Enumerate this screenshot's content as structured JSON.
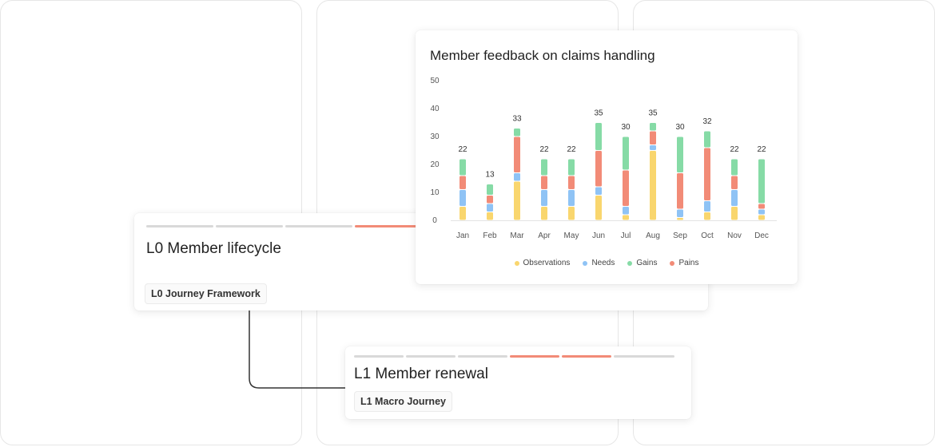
{
  "l0_card": {
    "title": "L0 Member lifecycle",
    "tag": "L0 Journey Framework"
  },
  "l1_card": {
    "title": "L1 Member renewal",
    "tag": "L1 Macro Journey"
  },
  "colors": {
    "progress_active": "#f28b77",
    "progress_inactive": "#d9d9d9",
    "observations": "#f9d66e",
    "needs": "#8fc3f5",
    "gains": "#86dba6",
    "pains": "#f28b77"
  },
  "chart_data": {
    "type": "bar",
    "stacked": true,
    "title": "Member feedback on claims handling",
    "categories": [
      "Jan",
      "Feb",
      "Mar",
      "Apr",
      "May",
      "Jun",
      "Jul",
      "Aug",
      "Sep",
      "Oct",
      "Nov",
      "Dec"
    ],
    "totals": [
      22,
      13,
      33,
      22,
      22,
      35,
      30,
      35,
      30,
      32,
      22,
      22
    ],
    "series": [
      {
        "name": "Observations",
        "values": [
          5,
          3,
          14,
          5,
          5,
          9,
          2,
          25,
          1,
          3,
          5,
          2
        ]
      },
      {
        "name": "Needs",
        "values": [
          6,
          3,
          3,
          6,
          6,
          3,
          3,
          2,
          3,
          4,
          6,
          2
        ]
      },
      {
        "name": "Pains",
        "values": [
          5,
          3,
          13,
          5,
          5,
          13,
          13,
          5,
          13,
          19,
          5,
          2
        ]
      },
      {
        "name": "Gains",
        "values": [
          6,
          4,
          3,
          6,
          6,
          10,
          12,
          3,
          13,
          6,
          6,
          16
        ]
      }
    ],
    "legend": [
      "Observations",
      "Needs",
      "Gains",
      "Pains"
    ],
    "ylim": [
      0,
      50
    ],
    "yticks": [
      0,
      10,
      20,
      30,
      40,
      50
    ],
    "grid": false,
    "legend_position": "bottom"
  }
}
